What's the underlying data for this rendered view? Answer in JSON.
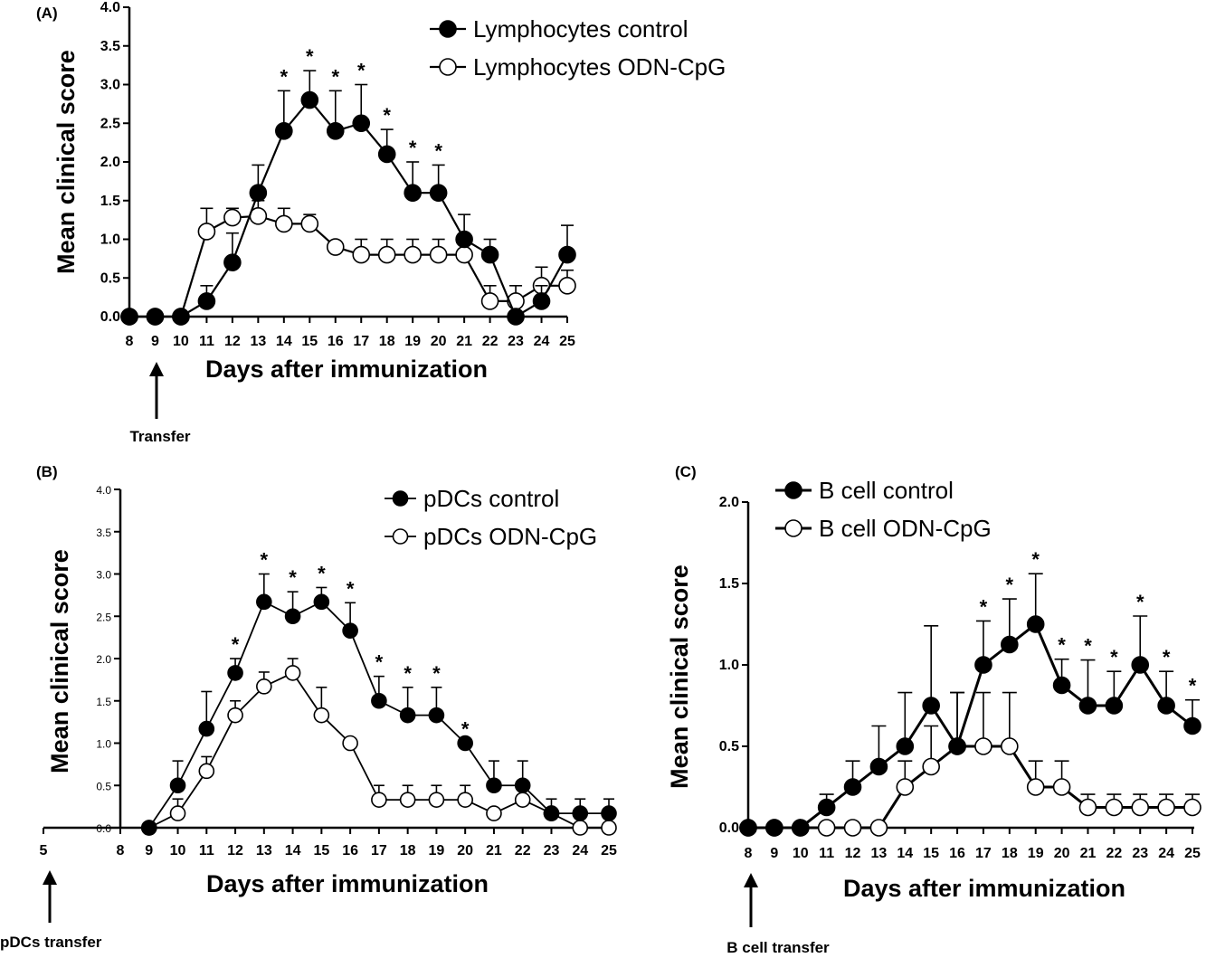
{
  "chart_data": [
    {
      "panel": "(A)",
      "type": "line",
      "ylabel": "Mean clinical score",
      "xlabel": "Days after immunization",
      "ylim": [
        0,
        4.0
      ],
      "yticks": [
        "0.0",
        "0.5",
        "1.0",
        "1.5",
        "2.0",
        "2.5",
        "3.0",
        "3.5",
        "4.0"
      ],
      "x": [
        8,
        9,
        10,
        11,
        12,
        13,
        14,
        15,
        16,
        17,
        18,
        19,
        20,
        21,
        22,
        23,
        24,
        25
      ],
      "xticks": [
        "8",
        "9",
        "10",
        "11",
        "12",
        "13",
        "14",
        "15",
        "16",
        "17",
        "18",
        "19",
        "20",
        "21",
        "22",
        "23",
        "24",
        "25"
      ],
      "series": [
        {
          "name": "Lymphocytes control",
          "marker": "filled",
          "values": [
            0,
            0,
            0,
            0.2,
            0.7,
            1.6,
            2.4,
            2.8,
            2.4,
            2.5,
            2.1,
            1.6,
            1.6,
            1.0,
            0.8,
            0,
            0.2,
            0.8
          ],
          "errors": [
            0,
            0,
            0,
            0.2,
            0.38,
            0.36,
            0.52,
            0.38,
            0.52,
            0.5,
            0.32,
            0.4,
            0.36,
            0.32,
            0.2,
            0,
            0.2,
            0.38
          ]
        },
        {
          "name": "Lymphocytes ODN-CpG",
          "marker": "open",
          "values": [
            0,
            0,
            0,
            1.1,
            1.28,
            1.3,
            1.2,
            1.2,
            0.9,
            0.8,
            0.8,
            0.8,
            0.8,
            0.8,
            0.2,
            0.2,
            0.4,
            0.4
          ],
          "errors": [
            0,
            0,
            0,
            0.3,
            0.12,
            0.2,
            0.2,
            0.12,
            0.06,
            0.2,
            0.2,
            0.2,
            0.2,
            0.2,
            0.2,
            0.2,
            0.24,
            0.2
          ]
        }
      ],
      "significant_x": [
        14,
        15,
        16,
        17,
        18,
        19,
        20
      ],
      "annotation": "*",
      "arrow_x": 9,
      "arrow_label": "Transfer",
      "legend_position": "top-right"
    },
    {
      "panel": "(B)",
      "type": "line",
      "ylabel": "Mean clinical score",
      "xlabel": "Days after immunization",
      "ylim": [
        0,
        4.0
      ],
      "yticks": [
        "0.0",
        "0.5",
        "1.0",
        "1.5",
        "2.0",
        "2.5",
        "3.0",
        "3.5",
        "4.0"
      ],
      "x": [
        9,
        10,
        11,
        12,
        13,
        14,
        15,
        16,
        17,
        18,
        19,
        20,
        21,
        22,
        23,
        24,
        25
      ],
      "xticks": [
        "5",
        "8",
        "9",
        "10",
        "11",
        "12",
        "13",
        "14",
        "15",
        "16",
        "17",
        "18",
        "19",
        "20",
        "21",
        "22",
        "23",
        "24",
        "25"
      ],
      "series": [
        {
          "name": "pDCs control",
          "marker": "filled",
          "values": [
            0,
            0.5,
            1.17,
            1.83,
            2.67,
            2.5,
            2.67,
            2.33,
            1.5,
            1.33,
            1.33,
            1.0,
            0.5,
            0.5,
            0.17,
            0.17,
            0.17
          ],
          "errors": [
            0,
            0.29,
            0.44,
            0.17,
            0.33,
            0.29,
            0.17,
            0.33,
            0.29,
            0.33,
            0.33,
            0,
            0.29,
            0.29,
            0.17,
            0.17,
            0.17
          ]
        },
        {
          "name": "pDCs ODN-CpG",
          "marker": "open",
          "values": [
            0,
            0.17,
            0.67,
            1.33,
            1.67,
            1.83,
            1.33,
            1.0,
            0.33,
            0.33,
            0.33,
            0.33,
            0.17,
            0.33,
            0.17,
            0,
            0
          ],
          "errors": [
            0,
            0.17,
            0.17,
            0.17,
            0.17,
            0.17,
            0.33,
            0,
            0.17,
            0.17,
            0.17,
            0.17,
            0,
            0.17,
            0,
            0,
            0
          ]
        }
      ],
      "significant_x": [
        12,
        13,
        14,
        15,
        16,
        17,
        18,
        19,
        20
      ],
      "annotation": "*",
      "arrow_x": 5,
      "arrow_label": "pDCs transfer",
      "legend_position": "top-right"
    },
    {
      "panel": "(C)",
      "type": "line",
      "ylabel": "Mean clinical score",
      "xlabel": "Days after immunization",
      "ylim": [
        0,
        2.0
      ],
      "yticks": [
        "0.0",
        "0.5",
        "1.0",
        "1.5",
        "2.0"
      ],
      "x": [
        8,
        9,
        10,
        11,
        12,
        13,
        14,
        15,
        16,
        17,
        18,
        19,
        20,
        21,
        22,
        23,
        24,
        25
      ],
      "xticks": [
        "8",
        "9",
        "10",
        "11",
        "12",
        "13",
        "14",
        "15",
        "16",
        "17",
        "18",
        "19",
        "20",
        "21",
        "22",
        "23",
        "24",
        "25"
      ],
      "series": [
        {
          "name": "B cell control",
          "marker": "filled",
          "values": [
            0,
            0,
            0,
            0.125,
            0.25,
            0.375,
            0.5,
            0.75,
            0.5,
            1.0,
            1.125,
            1.25,
            0.875,
            0.75,
            0.75,
            1.0,
            0.75,
            0.625
          ],
          "errors": [
            0,
            0,
            0,
            0.08,
            0.16,
            0.25,
            0.33,
            0.49,
            0.33,
            0.27,
            0.28,
            0.31,
            0.16,
            0.28,
            0.21,
            0.3,
            0.21,
            0.16
          ]
        },
        {
          "name": "B cell ODN-CpG",
          "marker": "open",
          "values": [
            0,
            0,
            0,
            0,
            0,
            0,
            0.25,
            0.375,
            0.5,
            0.5,
            0.5,
            0.25,
            0.25,
            0.125,
            0.125,
            0.125,
            0.125,
            0.125
          ],
          "errors": [
            0,
            0,
            0,
            0,
            0,
            0,
            0.16,
            0.25,
            0.33,
            0.33,
            0.33,
            0.16,
            0.16,
            0.08,
            0.08,
            0.08,
            0.08,
            0.08
          ]
        }
      ],
      "significant_x": [
        17,
        18,
        19,
        20,
        21,
        22,
        23,
        24,
        25
      ],
      "annotation": "*",
      "arrow_x": 8,
      "arrow_label": "B cell transfer",
      "legend_position": "top-left"
    }
  ]
}
